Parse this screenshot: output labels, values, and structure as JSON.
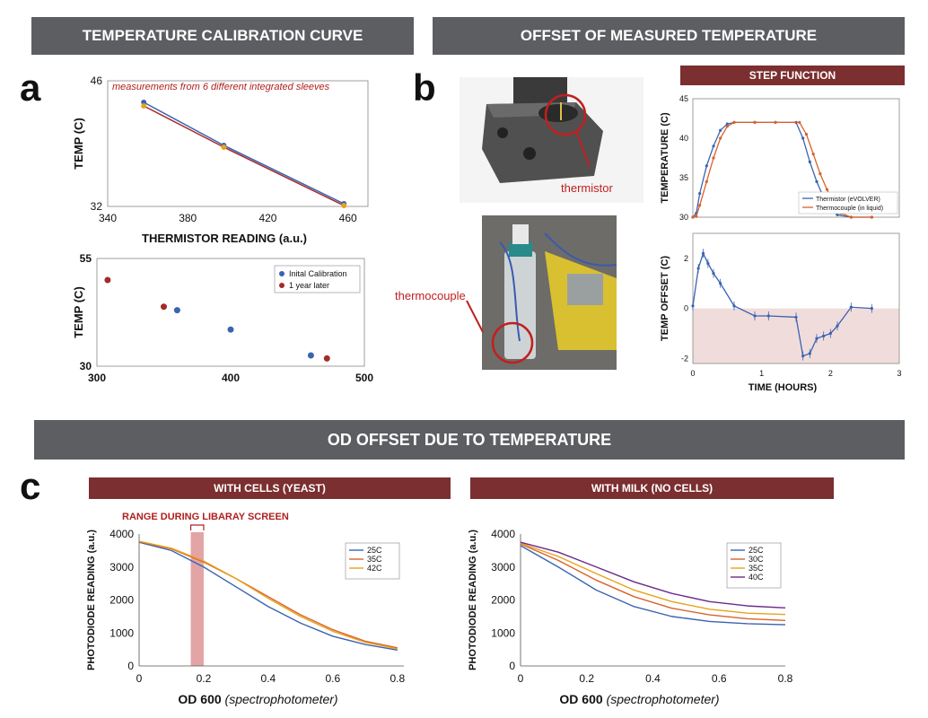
{
  "banners": {
    "calibration": "TEMPERATURE CALIBRATION CURVE",
    "offset": "OFFSET OF MEASURED TEMPERATURE",
    "od": "OD OFFSET DUE TO TEMPERATURE",
    "step": "STEP FUNCTION",
    "cells": "WITH CELLS (YEAST)",
    "milk": "WITH MILK (NO CELLS)"
  },
  "panels": {
    "a": "a",
    "b": "b",
    "c": "c"
  },
  "photo_labels": {
    "thermistor": "thermistor",
    "thermocouple": "thermocouple"
  },
  "colors": {
    "blue": "#3a63b0",
    "red": "#a52a2a",
    "orange": "#d9622b",
    "gold": "#e8a21c",
    "purple": "#6a2a8a",
    "banner_gray": "#5c5e61",
    "banner_red": "#7b2f30"
  },
  "chart_data": [
    {
      "id": "a1",
      "type": "line",
      "annotation": "measurements from 6 different integrated sleeves",
      "xlabel": "THERMISTOR READING (a.u.)",
      "ylabel": "TEMP (C)",
      "xlim": [
        340,
        470
      ],
      "ylim": [
        32,
        46
      ],
      "xticks": [
        340,
        380,
        420,
        460
      ],
      "yticks": [
        32,
        46
      ],
      "series": [
        {
          "points": [
            [
              358,
              43.6
            ],
            [
              398,
              38.8
            ],
            [
              458,
              32.3
            ]
          ]
        },
        {
          "points": [
            [
              358,
              43.2
            ],
            [
              398,
              38.6
            ],
            [
              458,
              32.1
            ]
          ]
        }
      ]
    },
    {
      "id": "a2",
      "type": "scatter",
      "xlabel": "",
      "ylabel": "TEMP (C)",
      "xlim": [
        300,
        500
      ],
      "ylim": [
        30,
        55
      ],
      "xticks": [
        300,
        400,
        500
      ],
      "yticks": [
        30,
        55
      ],
      "legend": "top-right",
      "series": [
        {
          "name": "Inital Calibration",
          "points": [
            [
              360,
              43
            ],
            [
              400,
              38.5
            ],
            [
              460,
              32.5
            ]
          ]
        },
        {
          "name": "1 year later",
          "points": [
            [
              308,
              50
            ],
            [
              350,
              43.8
            ],
            [
              472,
              31.8
            ]
          ]
        }
      ]
    },
    {
      "id": "b1",
      "type": "line",
      "xlabel": "",
      "ylabel": "TEMPERATURE (C)",
      "xlim": [
        0,
        3
      ],
      "ylim": [
        30,
        45
      ],
      "yticks": [
        30,
        35,
        40,
        45
      ],
      "legend": "bottom-right",
      "series": [
        {
          "name": "Thermistor (eVOLVER)",
          "points": [
            [
              0,
              30
            ],
            [
              0.05,
              30.5
            ],
            [
              0.1,
              33
            ],
            [
              0.2,
              36.5
            ],
            [
              0.3,
              39
            ],
            [
              0.4,
              41
            ],
            [
              0.5,
              41.8
            ],
            [
              0.6,
              42
            ],
            [
              0.9,
              42
            ],
            [
              1.2,
              42
            ],
            [
              1.5,
              42
            ],
            [
              1.6,
              40
            ],
            [
              1.7,
              37
            ],
            [
              1.8,
              34.5
            ],
            [
              1.9,
              32.5
            ],
            [
              2.0,
              31
            ],
            [
              2.1,
              30.3
            ],
            [
              2.3,
              30
            ],
            [
              2.6,
              30
            ]
          ]
        },
        {
          "name": "Thermocouple (in liquid)",
          "points": [
            [
              0,
              30
            ],
            [
              0.05,
              30.1
            ],
            [
              0.1,
              31.5
            ],
            [
              0.2,
              34.5
            ],
            [
              0.3,
              37.5
            ],
            [
              0.4,
              40
            ],
            [
              0.5,
              41.5
            ],
            [
              0.6,
              42
            ],
            [
              0.9,
              42
            ],
            [
              1.2,
              42
            ],
            [
              1.55,
              42
            ],
            [
              1.65,
              40.5
            ],
            [
              1.75,
              38
            ],
            [
              1.85,
              35.5
            ],
            [
              1.95,
              33.5
            ],
            [
              2.05,
              31.8
            ],
            [
              2.15,
              30.5
            ],
            [
              2.3,
              30
            ],
            [
              2.6,
              30
            ]
          ]
        }
      ]
    },
    {
      "id": "b2",
      "type": "line",
      "xlabel": "TIME (HOURS)",
      "ylabel": "TEMP OFFSET (C)",
      "xlim": [
        0,
        3
      ],
      "ylim": [
        -2.2,
        3
      ],
      "xticks": [
        0,
        1,
        2,
        3
      ],
      "yticks": [
        -2,
        0,
        2
      ],
      "series": [
        {
          "points": [
            [
              0,
              0.1
            ],
            [
              0.08,
              1.6
            ],
            [
              0.15,
              2.2
            ],
            [
              0.22,
              1.8
            ],
            [
              0.3,
              1.4
            ],
            [
              0.4,
              1
            ],
            [
              0.6,
              0.1
            ],
            [
              0.9,
              -0.3
            ],
            [
              1.1,
              -0.3
            ],
            [
              1.5,
              -0.35
            ],
            [
              1.6,
              -1.9
            ],
            [
              1.7,
              -1.8
            ],
            [
              1.8,
              -1.2
            ],
            [
              1.9,
              -1.1
            ],
            [
              2.0,
              -1.0
            ],
            [
              2.1,
              -0.7
            ],
            [
              2.3,
              0.05
            ],
            [
              2.6,
              0
            ]
          ]
        }
      ]
    },
    {
      "id": "c1",
      "type": "line",
      "annotation": "RANGE DURING LIBARAY SCREEN",
      "xlabel": "OD 600",
      "xlabel_italic": "(spectrophotometer)",
      "ylabel": "PHOTODIODE READING (a.u.)",
      "xlim": [
        0,
        0.82
      ],
      "ylim": [
        0,
        4000
      ],
      "xticks": [
        0,
        0.2,
        0.4,
        0.6,
        0.8
      ],
      "yticks": [
        0,
        1000,
        2000,
        3000,
        4000
      ],
      "highlight": [
        0.16,
        0.2
      ],
      "legend": "top-right",
      "series": [
        {
          "name": "25C",
          "values": [
            3750,
            3500,
            3000,
            2400,
            1800,
            1300,
            900,
            650,
            480
          ]
        },
        {
          "name": "35C",
          "values": [
            3770,
            3550,
            3150,
            2650,
            2100,
            1550,
            1100,
            750,
            550
          ]
        },
        {
          "name": "42C",
          "values": [
            3780,
            3570,
            3180,
            2650,
            2050,
            1500,
            1050,
            720,
            520
          ]
        }
      ],
      "x": [
        0,
        0.1,
        0.2,
        0.3,
        0.4,
        0.5,
        0.6,
        0.7,
        0.8
      ]
    },
    {
      "id": "c2",
      "type": "line",
      "xlabel": "OD 600",
      "xlabel_italic": "(spectrophotometer)",
      "ylabel": "PHOTODIODE READING (a.u.)",
      "xlim": [
        0,
        0.8
      ],
      "ylim": [
        0,
        4000
      ],
      "xticks": [
        0,
        0.2,
        0.4,
        0.6,
        0.8
      ],
      "yticks": [
        0,
        1000,
        2000,
        3000,
        4000
      ],
      "legend": "top-right",
      "series": [
        {
          "name": "25C",
          "values": [
            3650,
            3000,
            2300,
            1800,
            1500,
            1350,
            1280,
            1250
          ]
        },
        {
          "name": "30C",
          "values": [
            3700,
            3200,
            2600,
            2100,
            1750,
            1550,
            1430,
            1380
          ]
        },
        {
          "name": "35C",
          "values": [
            3720,
            3320,
            2800,
            2300,
            1950,
            1720,
            1600,
            1560
          ]
        },
        {
          "name": "40C",
          "values": [
            3750,
            3450,
            3000,
            2550,
            2200,
            1950,
            1820,
            1760
          ]
        }
      ],
      "x": [
        0,
        0.114,
        0.229,
        0.343,
        0.457,
        0.571,
        0.686,
        0.8
      ]
    }
  ]
}
